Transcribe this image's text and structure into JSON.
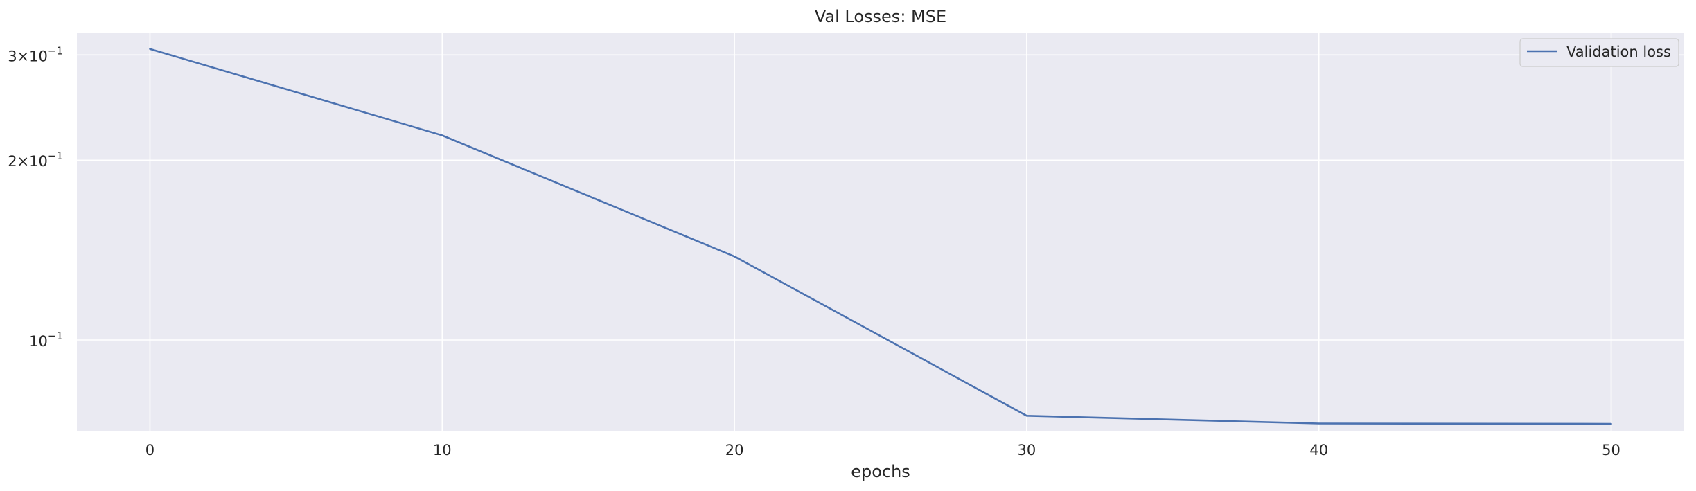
{
  "chart_data": {
    "type": "line",
    "title": "Val Losses:  MSE",
    "xlabel": "epochs",
    "ylabel": "",
    "xlim": [
      -2.5,
      52.5
    ],
    "ylim": [
      0.0705,
      0.327
    ],
    "yscale": "log",
    "xticks": [
      0,
      10,
      20,
      30,
      40,
      50
    ],
    "yticks": [
      {
        "value": 0.3,
        "mantissa": "3",
        "exponent": "−1"
      },
      {
        "value": 0.2,
        "mantissa": "2",
        "exponent": "−1"
      },
      {
        "value": 0.1,
        "mantissa": "",
        "exponent": "−1"
      }
    ],
    "grid": true,
    "legend_position": "top-right",
    "series": [
      {
        "name": "Validation loss",
        "color": "#4c72b0",
        "x": [
          0,
          10,
          20,
          30,
          40,
          50
        ],
        "y": [
          0.307,
          0.22,
          0.138,
          0.0747,
          0.0725,
          0.0724
        ]
      }
    ],
    "background_color": "#eaeaf2",
    "grid_color": "#ffffff"
  }
}
